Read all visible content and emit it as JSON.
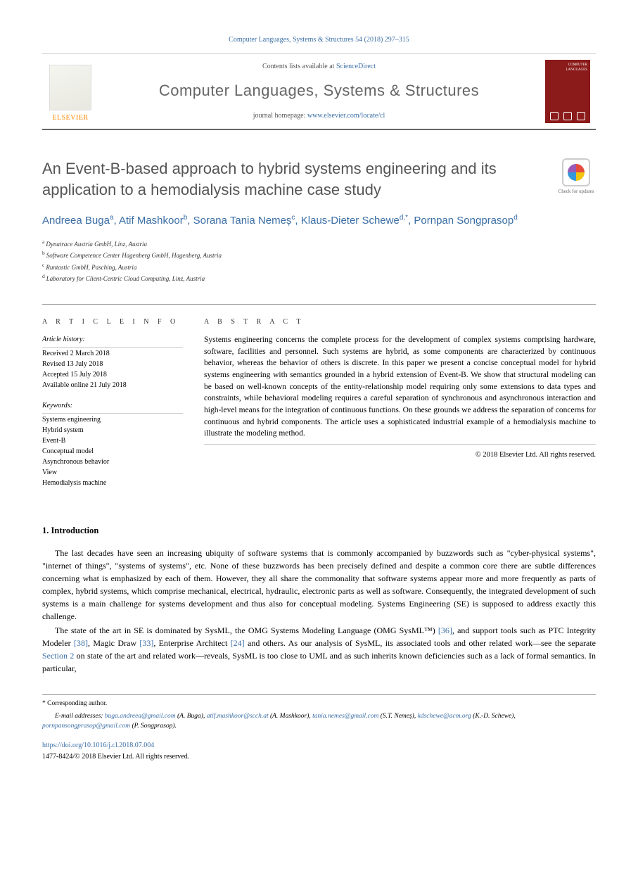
{
  "citation": "Computer Languages, Systems & Structures 54 (2018) 297–315",
  "header": {
    "publisher_logo_text": "ELSEVIER",
    "contents_prefix": "Contents lists available at ",
    "contents_link": "ScienceDirect",
    "journal_name": "Computer Languages, Systems & Structures",
    "homepage_prefix": "journal homepage: ",
    "homepage_url": "www.elsevier.com/locate/cl",
    "cover_label": "COMPUTER LANGUAGES"
  },
  "article": {
    "title": "An Event-B-based approach to hybrid systems engineering and its application to a hemodialysis machine case study",
    "check_updates_label": "Check for updates",
    "authors": [
      {
        "name": "Andreea Buga",
        "aff": "a"
      },
      {
        "name": "Atif Mashkoor",
        "aff": "b"
      },
      {
        "name": "Sorana Tania Nemeș",
        "aff": "c"
      },
      {
        "name": "Klaus-Dieter Schewe",
        "aff": "d,*"
      },
      {
        "name": "Pornpan Songprasop",
        "aff": "d"
      }
    ],
    "affiliations": [
      {
        "key": "a",
        "text": "Dynatrace Austria GmbH, Linz, Austria"
      },
      {
        "key": "b",
        "text": "Software Competence Center Hagenberg GmbH, Hagenberg, Austria"
      },
      {
        "key": "c",
        "text": "Runtastic GmbH, Pasching, Austria"
      },
      {
        "key": "d",
        "text": "Laboratory for Client-Centric Cloud Computing, Linz, Austria"
      }
    ]
  },
  "info": {
    "heading": "A R T I C L E   I N F O",
    "history_head": "Article history:",
    "history": [
      "Received 2 March 2018",
      "Revised 13 July 2018",
      "Accepted 15 July 2018",
      "Available online 21 July 2018"
    ],
    "keywords_head": "Keywords:",
    "keywords": [
      "Systems engineering",
      "Hybrid system",
      "Event-B",
      "Conceptual model",
      "Asynchronous behavior",
      "View",
      "Hemodialysis machine"
    ]
  },
  "abstract": {
    "heading": "A B S T R A C T",
    "text": "Systems engineering concerns the complete process for the development of complex systems comprising hardware, software, facilities and personnel. Such systems are hybrid, as some components are characterized by continuous behavior, whereas the behavior of others is discrete. In this paper we present a concise conceptual model for hybrid systems engineering with semantics grounded in a hybrid extension of Event-B. We show that structural modeling can be based on well-known concepts of the entity-relationship model requiring only some extensions to data types and constraints, while behavioral modeling requires a careful separation of synchronous and asynchronous interaction and high-level means for the integration of continuous functions. On these grounds we address the separation of concerns for continuous and hybrid components. The article uses a sophisticated industrial example of a hemodialysis machine to illustrate the modeling method.",
    "copyright": "© 2018 Elsevier Ltd. All rights reserved."
  },
  "section1": {
    "heading": "1. Introduction",
    "p1_a": "The last decades have seen an increasing ubiquity of software systems that is commonly accompanied by buzzwords such as \"cyber-physical systems\", \"internet of things\", \"systems of systems\", etc. None of these buzzwords has been precisely defined and despite a common core there are subtle differences concerning what is emphasized by each of them. However, they all share the commonality that software systems appear more and more frequently as parts of complex, hybrid systems, which comprise mechanical, electrical, hydraulic, electronic parts as well as software. Consequently, the integrated development of such systems is a main challenge for systems development and thus also for conceptual modeling. Systems Engineering (SE) is supposed to address exactly this challenge.",
    "p2_a": "The state of the art in SE is dominated by SysML, the OMG Systems Modeling Language (OMG SysML™) ",
    "ref36": "[36]",
    "p2_b": ", and support tools such as PTC Integrity Modeler ",
    "ref38": "[38]",
    "p2_c": ", Magic Draw ",
    "ref33": "[33]",
    "p2_d": ", Enterprise Architect ",
    "ref24": "[24]",
    "p2_e": " and others. As our analysis of SysML, its associated tools and other related work—see the separate ",
    "sec2": "Section 2",
    "p2_f": " on state of the art and related work—reveals, SysML is too close to UML and as such inherits known deficiencies such as a lack of formal semantics. In particular,"
  },
  "footer": {
    "corr_label": "* Corresponding author.",
    "emails_label": "E-mail addresses: ",
    "emails": [
      {
        "addr": "buga.andreea@gmail.com",
        "who": "(A. Buga)"
      },
      {
        "addr": "atif.mashkoor@scch.at",
        "who": "(A. Mashkoor)"
      },
      {
        "addr": "tania.nemes@gmail.com",
        "who": "(S.T. Nemeș)"
      },
      {
        "addr": "kdschewe@acm.org",
        "who": "(K.-D. Schewe)"
      },
      {
        "addr": "pornpansongprasop@gmail.com",
        "who": "(P. Songprasop)."
      }
    ],
    "doi": "https://doi.org/10.1016/j.cl.2018.07.004",
    "copyright": "1477-8424/© 2018 Elsevier Ltd. All rights reserved."
  }
}
